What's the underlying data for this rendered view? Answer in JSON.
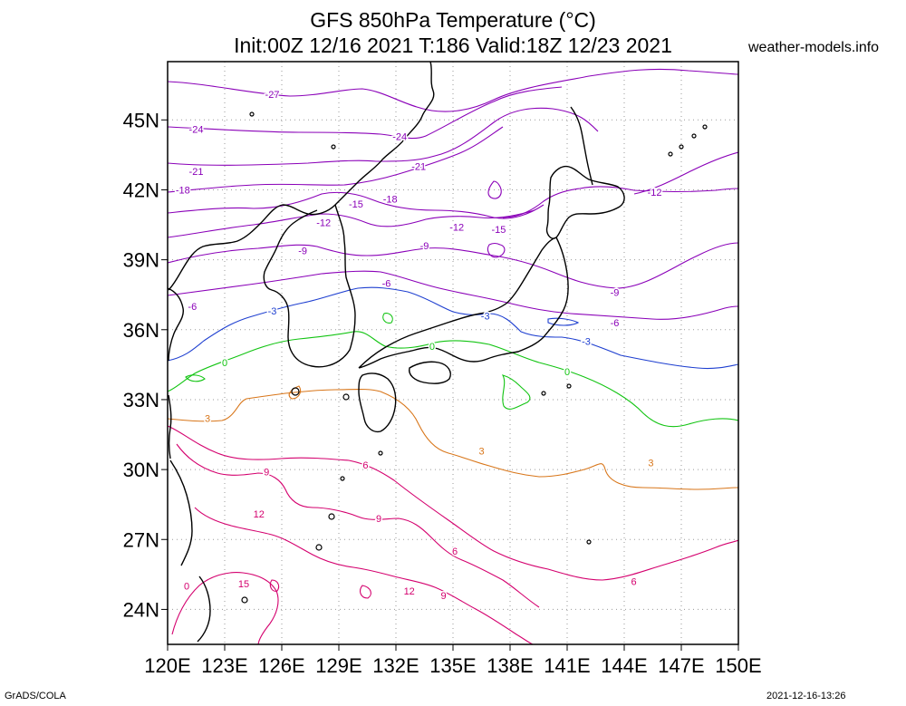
{
  "header": {
    "title_line1": "GFS 850hPa Temperature (°C)",
    "title_line2": "Init:00Z 12/16 2021 T:186 Valid:18Z 12/23 2021",
    "site": "weather-models.info"
  },
  "footer": {
    "left": "GrADS/COLA",
    "right": "2021-12-16-13:26"
  },
  "map": {
    "lon_labels": [
      "120E",
      "123E",
      "126E",
      "129E",
      "132E",
      "135E",
      "138E",
      "141E",
      "144E",
      "147E",
      "150E"
    ],
    "lat_labels": [
      "45N",
      "42N",
      "39N",
      "36N",
      "33N",
      "30N",
      "27N",
      "24N"
    ],
    "colors": {
      "cold": "#8a00b8",
      "minus3": "#1e3fd0",
      "zero": "#12c412",
      "three": "#d8761a",
      "warm": "#d4006e",
      "coast": "#000000",
      "grid": "#9a9a9a"
    },
    "contour_labels": [
      {
        "text": "-27",
        "color": "cold"
      },
      {
        "text": "-24",
        "color": "cold"
      },
      {
        "text": "-24",
        "color": "cold"
      },
      {
        "text": "-21",
        "color": "cold"
      },
      {
        "text": "-21",
        "color": "cold"
      },
      {
        "text": "-18",
        "color": "cold"
      },
      {
        "text": "-18",
        "color": "cold"
      },
      {
        "text": "-15",
        "color": "cold"
      },
      {
        "text": "-15",
        "color": "cold"
      },
      {
        "text": "-12",
        "color": "cold"
      },
      {
        "text": "-12",
        "color": "cold"
      },
      {
        "text": "-12",
        "color": "cold"
      },
      {
        "text": "-9",
        "color": "cold"
      },
      {
        "text": "-9",
        "color": "cold"
      },
      {
        "text": "-9",
        "color": "cold"
      },
      {
        "text": "-6",
        "color": "cold"
      },
      {
        "text": "-6",
        "color": "cold"
      },
      {
        "text": "-6",
        "color": "cold"
      },
      {
        "text": "-3",
        "color": "minus3"
      },
      {
        "text": "-3",
        "color": "minus3"
      },
      {
        "text": "-3",
        "color": "minus3"
      },
      {
        "text": "0",
        "color": "zero"
      },
      {
        "text": "0",
        "color": "zero"
      },
      {
        "text": "0",
        "color": "zero"
      },
      {
        "text": "3",
        "color": "three"
      },
      {
        "text": "3",
        "color": "three"
      },
      {
        "text": "3",
        "color": "three"
      },
      {
        "text": "6",
        "color": "warm"
      },
      {
        "text": "6",
        "color": "warm"
      },
      {
        "text": "6",
        "color": "warm"
      },
      {
        "text": "9",
        "color": "warm"
      },
      {
        "text": "9",
        "color": "warm"
      },
      {
        "text": "9",
        "color": "warm"
      },
      {
        "text": "12",
        "color": "warm"
      },
      {
        "text": "12",
        "color": "warm"
      },
      {
        "text": "15",
        "color": "warm"
      },
      {
        "text": "0",
        "color": "warm"
      }
    ]
  }
}
